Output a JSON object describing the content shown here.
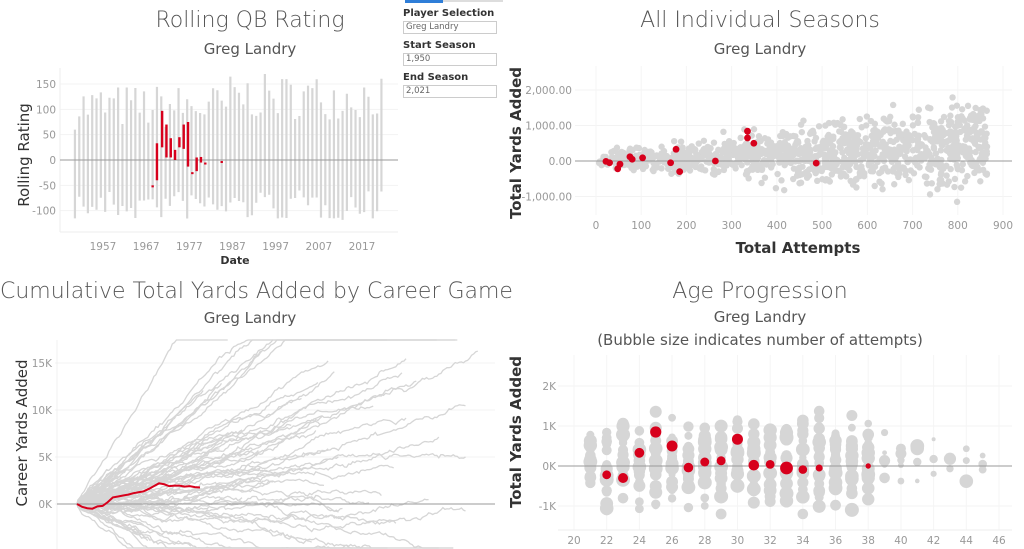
{
  "filters": {
    "player_label": "Player Selection",
    "player_value": "Greg Landry",
    "start_label": "Start Season",
    "start_value": "1,950",
    "end_label": "End Season",
    "end_value": "2,021"
  },
  "colors": {
    "highlight": "#d7001c",
    "background_marks": "#d6d6d6",
    "zero_line": "#999999"
  },
  "chart_data": [
    {
      "type": "bar",
      "title": "Rolling QB Rating",
      "subtitle": "Greg Landry",
      "xlabel": "Date",
      "ylabel": "Rolling Rating",
      "xticks": [
        "1957",
        "1967",
        "1977",
        "1987",
        "1997",
        "2007",
        "2017"
      ],
      "yticks": [
        "150",
        "100",
        "50",
        "0",
        "-50",
        "-100"
      ],
      "xlim": [
        1947,
        2025
      ],
      "ylim": [
        -140,
        170
      ],
      "highlight_ranges": [
        [
          1968.5,
          -54,
          -50
        ],
        [
          1969.5,
          -40,
          33
        ],
        [
          1970.7,
          25,
          97
        ],
        [
          1971.7,
          5,
          70
        ],
        [
          1972.7,
          5,
          43
        ],
        [
          1973.7,
          0,
          20
        ],
        [
          1974.7,
          25,
          45
        ],
        [
          1975.7,
          22,
          70
        ],
        [
          1976.7,
          -13,
          75
        ],
        [
          1977.7,
          -27,
          -24
        ],
        [
          1978.7,
          -22,
          5
        ],
        [
          1979.7,
          -5,
          6
        ],
        [
          1980.7,
          -8,
          -5
        ],
        [
          1984.5,
          -4,
          -2
        ]
      ]
    },
    {
      "type": "scatter",
      "title": "All Individual Seasons",
      "subtitle": "Greg Landry",
      "xlabel": "Total Attempts",
      "ylabel": "Total Yards Added",
      "xticks": [
        "0",
        "100",
        "200",
        "300",
        "400",
        "500",
        "600",
        "700",
        "800",
        "900"
      ],
      "yticks": [
        "2,000.00",
        "1,000.00",
        "0.00",
        "-1,000.00"
      ],
      "xlim": [
        -45,
        920
      ],
      "ylim": [
        -1500,
        2650
      ],
      "highlight_points": [
        [
          22,
          -10
        ],
        [
          30,
          -50
        ],
        [
          48,
          -220
        ],
        [
          53,
          -90
        ],
        [
          75,
          120
        ],
        [
          80,
          50
        ],
        [
          103,
          90
        ],
        [
          165,
          -50
        ],
        [
          177,
          330
        ],
        [
          185,
          -300
        ],
        [
          264,
          0
        ],
        [
          335,
          840
        ],
        [
          335,
          650
        ],
        [
          349,
          500
        ],
        [
          487,
          -60
        ]
      ]
    },
    {
      "type": "line",
      "title": "Cumulative Total Yards Added by Career Game",
      "subtitle": "Greg Landry",
      "xlabel": "",
      "ylabel": "Career Yards Added",
      "yticks": [
        "15K",
        "10K",
        "5K",
        "0K"
      ],
      "ylim": [
        -4000,
        17500
      ],
      "highlight_series": {
        "name": "Greg Landry",
        "x": [
          0,
          5,
          10,
          15,
          20,
          25,
          30,
          35,
          40,
          45,
          50,
          55,
          60,
          65,
          70,
          75,
          80,
          85,
          90,
          95,
          100,
          105,
          110,
          115,
          120
        ],
        "y": [
          0,
          -300,
          -450,
          -500,
          -250,
          -200,
          200,
          700,
          800,
          900,
          1000,
          1150,
          1250,
          1350,
          1600,
          1900,
          2200,
          2100,
          1900,
          1950,
          1950,
          1850,
          1900,
          1800,
          1750
        ]
      }
    },
    {
      "type": "scatter",
      "title": "Age Progression",
      "subtitle": "Greg Landry",
      "note": "(Bubble size indicates number of attempts)",
      "xlabel": "",
      "ylabel": "Total Yards Added",
      "xticks": [
        "20",
        "22",
        "24",
        "26",
        "28",
        "30",
        "32",
        "34",
        "36",
        "38",
        "40",
        "42",
        "44",
        "46"
      ],
      "yticks": [
        "2K",
        "1K",
        "0K",
        "-1K"
      ],
      "xlim": [
        19,
        47
      ],
      "ylim": [
        -1500,
        2600
      ],
      "highlight_points": [
        [
          22,
          -220,
          170
        ],
        [
          23,
          -300,
          260
        ],
        [
          24,
          330,
          240
        ],
        [
          25,
          850,
          340
        ],
        [
          26,
          500,
          330
        ],
        [
          27,
          -40,
          220
        ],
        [
          28,
          100,
          180
        ],
        [
          29,
          130,
          180
        ],
        [
          30,
          670,
          330
        ],
        [
          31,
          20,
          300
        ],
        [
          32,
          40,
          170
        ],
        [
          33,
          -50,
          490
        ],
        [
          34,
          -90,
          160
        ],
        [
          35,
          -50,
          80
        ],
        [
          38,
          0,
          30
        ]
      ]
    }
  ]
}
